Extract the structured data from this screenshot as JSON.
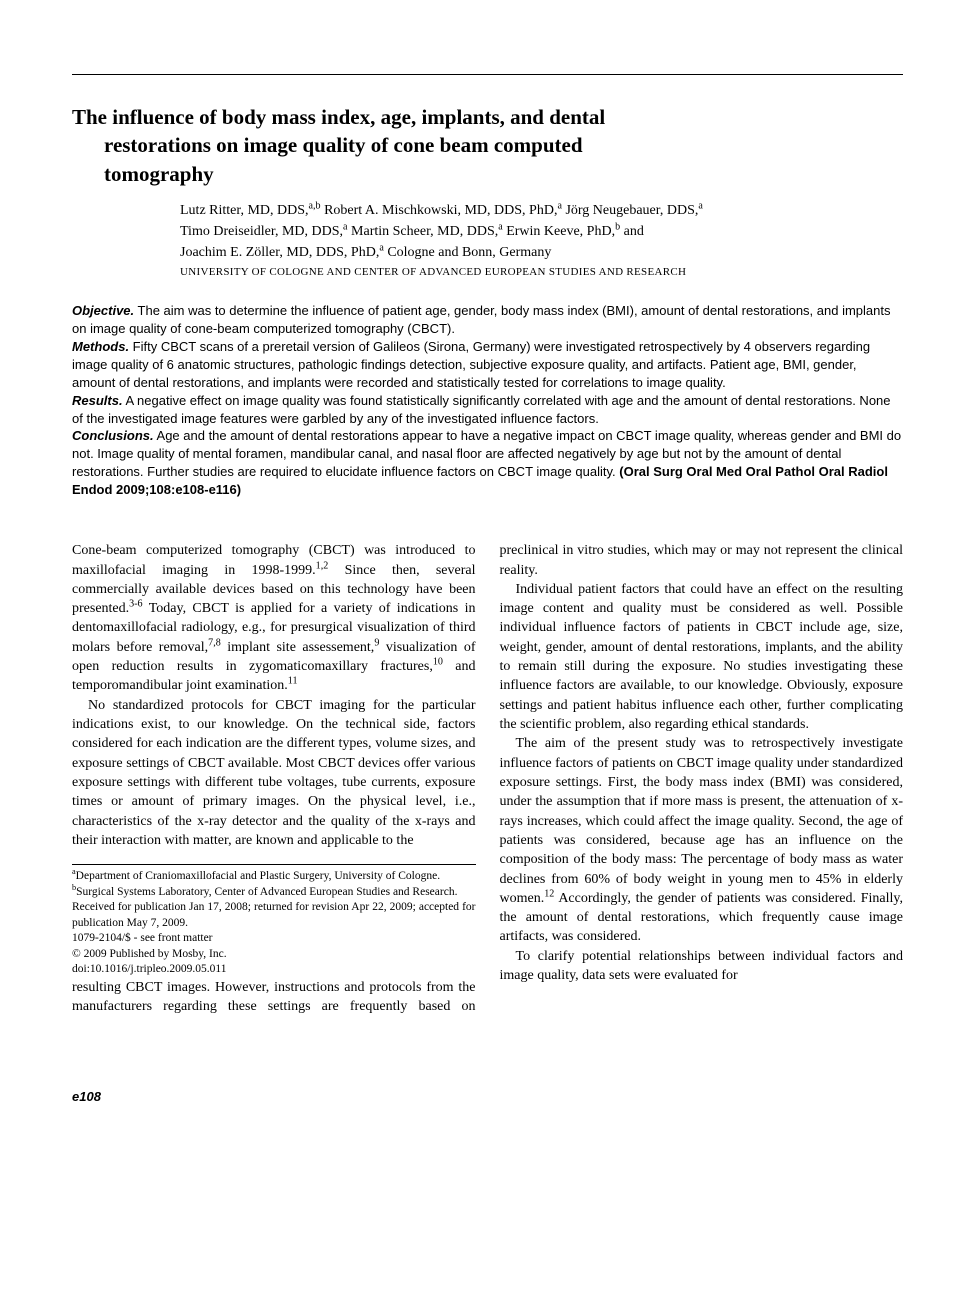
{
  "title_line1": "The influence of body mass index, age, implants, and dental",
  "title_line2": "restorations on image quality of cone beam computed",
  "title_line3": "tomography",
  "authors_line1": "Lutz Ritter, MD, DDS,",
  "authors_sup1": "a,b",
  "authors_line1b": " Robert A. Mischkowski, MD, DDS, PhD,",
  "authors_sup2": "a",
  "authors_line1c": " Jörg Neugebauer, DDS,",
  "authors_sup3": "a",
  "authors_line2": "Timo Dreiseidler, MD, DDS,",
  "authors_sup4": "a",
  "authors_line2b": " Martin Scheer, MD, DDS,",
  "authors_sup5": "a",
  "authors_line2c": " Erwin Keeve, PhD,",
  "authors_sup6": "b",
  "authors_line2d": " and",
  "authors_line3": "Joachim E. Zöller, MD, DDS, PhD,",
  "authors_sup7": "a",
  "authors_line3b": " Cologne and Bonn, Germany",
  "affiliation": "UNIVERSITY OF COLOGNE AND CENTER OF ADVANCED EUROPEAN STUDIES AND RESEARCH",
  "abstract": {
    "objective_label": "Objective.",
    "objective": " The aim was to determine the influence of patient age, gender, body mass index (BMI), amount of dental restorations, and implants on image quality of cone-beam computerized tomography (CBCT).",
    "methods_label": "Methods.",
    "methods": " Fifty CBCT scans of a preretail version of Galileos (Sirona, Germany) were investigated retrospectively by 4 observers regarding image quality of 6 anatomic structures, pathologic findings detection, subjective exposure quality, and artifacts. Patient age, BMI, gender, amount of dental restorations, and implants were recorded and statistically tested for correlations to image quality.",
    "results_label": "Results.",
    "results": " A negative effect on image quality was found statistically significantly correlated with age and the amount of dental restorations. None of the investigated image features were garbled by any of the investigated influence factors.",
    "conclusions_label": "Conclusions.",
    "conclusions": " Age and the amount of dental restorations appear to have a negative impact on CBCT image quality, whereas gender and BMI do not. Image quality of mental foramen, mandibular canal, and nasal floor are affected negatively by age but not by the amount of dental restorations. Further studies are required to elucidate influence factors on CBCT image quality. ",
    "citation": "(Oral Surg Oral Med Oral Pathol Oral Radiol Endod 2009;108:e108-e116)"
  },
  "para1a": "Cone-beam computerized tomography (CBCT) was introduced to maxillofacial imaging in 1998-1999.",
  "para1_sup1": "1,2",
  "para1b": " Since then, several commercially available devices based on this technology have been presented.",
  "para1_sup2": "3-6",
  "para1c": " Today, CBCT is applied for a variety of indications in dentomaxillofacial radiology, e.g., for presurgical visualization of third molars before removal,",
  "para1_sup3": "7,8",
  "para1d": " implant site assessement,",
  "para1_sup4": "9",
  "para1e": " visualization of open reduction results in zygomaticomaxillary fractures,",
  "para1_sup5": "10",
  "para1f": " and temporomandibular joint examination.",
  "para1_sup6": "11",
  "para2": "No standardized protocols for CBCT imaging for the particular indications exist, to our knowledge. On the technical side, factors considered for each indication are the different types, volume sizes, and exposure settings of CBCT available. Most CBCT devices offer various exposure settings with different tube voltages, tube currents, exposure times or amount of primary images. On the physical level, i.e., characteristics of the x-ray detector and the quality of the x-rays and their interaction with matter, are known and applicable to the",
  "para2b": "resulting CBCT images. However, instructions and protocols from the manufacturers regarding these settings are frequently based on preclinical in vitro studies, which may or may not represent the clinical reality.",
  "para3": "Individual patient factors that could have an effect on the resulting image content and quality must be considered as well. Possible individual influence factors of patients in CBCT include age, size, weight, gender, amount of dental restorations, implants, and the ability to remain still during the exposure. No studies investigating these influence factors are available, to our knowledge. Obviously, exposure settings and patient habitus influence each other, further complicating the scientific problem, also regarding ethical standards.",
  "para4a": "The aim of the present study was to retrospectively investigate influence factors of patients on CBCT image quality under standardized exposure settings. First, the body mass index (BMI) was considered, under the assumption that if more mass is present, the attenuation of x-rays increases, which could affect the image quality. Second, the age of patients was considered, because age has an influence on the composition of the body mass: The percentage of body mass as water declines from 60% of body weight in young men to 45% in elderly women.",
  "para4_sup1": "12",
  "para4b": " Accordingly, the gender of patients was considered. Finally, the amount of dental restorations, which frequently cause image artifacts, was considered.",
  "para5": "To clarify potential relationships between individual factors and image quality, data sets were evaluated for",
  "footnotes": {
    "a_sup": "a",
    "a": "Department of Craniomaxillofacial and Plastic Surgery, University of Cologne.",
    "b_sup": "b",
    "b": "Surgical Systems Laboratory, Center of Advanced European Studies and Research.",
    "received": "Received for publication Jan 17, 2008; returned for revision Apr 22, 2009; accepted for publication May 7, 2009.",
    "issn": "1079-2104/$ - see front matter",
    "copyright": "© 2009 Published by Mosby, Inc.",
    "doi": "doi:10.1016/j.tripleo.2009.05.011"
  },
  "page_number": "e108"
}
